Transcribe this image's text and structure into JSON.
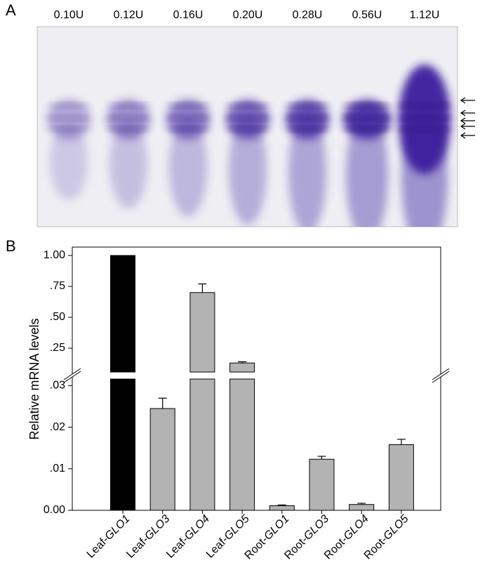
{
  "panel_labels": [
    "A",
    "B"
  ],
  "gel": {
    "lanes": [
      "0.10U",
      "0.12U",
      "0.16U",
      "0.20U",
      "0.28U",
      "0.56U",
      "1.12U"
    ]
  },
  "chart_data": {
    "type": "bar",
    "broken_axis": true,
    "y_label": "Relative mRNA levels",
    "categories": [
      [
        "Leaf-",
        "GLO1"
      ],
      [
        "Leaf-",
        "GLO3"
      ],
      [
        "Leaf-",
        "GLO4"
      ],
      [
        "Leaf-",
        "GLO5"
      ],
      [
        "Root-",
        "GLO1"
      ],
      [
        "Root-",
        "GLO3"
      ],
      [
        "Root-",
        "GLO4"
      ],
      [
        "Root-",
        "GLO5"
      ]
    ],
    "values": [
      1.0,
      0.0245,
      0.7,
      0.13,
      0.0011,
      0.0123,
      0.0014,
      0.0158
    ],
    "errors": [
      0,
      0.0025,
      0.07,
      0.01,
      0.0002,
      0.0007,
      0.0003,
      0.0013
    ],
    "colors": [
      "#000000",
      "#b3b3b3",
      "#b3b3b3",
      "#b3b3b3",
      "#b3b3b3",
      "#b3b3b3",
      "#b3b3b3",
      "#b3b3b3"
    ],
    "segments": [
      {
        "ylim": [
          0,
          0.0316
        ],
        "yticks": [
          {
            "value": 0,
            "label": "0.00"
          },
          {
            "value": 0.01,
            "label": ".01"
          },
          {
            "value": 0.02,
            "label": ".02"
          },
          {
            "value": 0.03,
            "label": ".03"
          }
        ]
      },
      {
        "ylim": [
          0.057,
          1.068
        ],
        "yticks": [
          {
            "value": 0.25,
            "label": ".25"
          },
          {
            "value": 0.5,
            "label": ".50"
          },
          {
            "value": 0.75,
            "label": ".75"
          },
          {
            "value": 1,
            "label": "1.00"
          }
        ]
      }
    ]
  }
}
